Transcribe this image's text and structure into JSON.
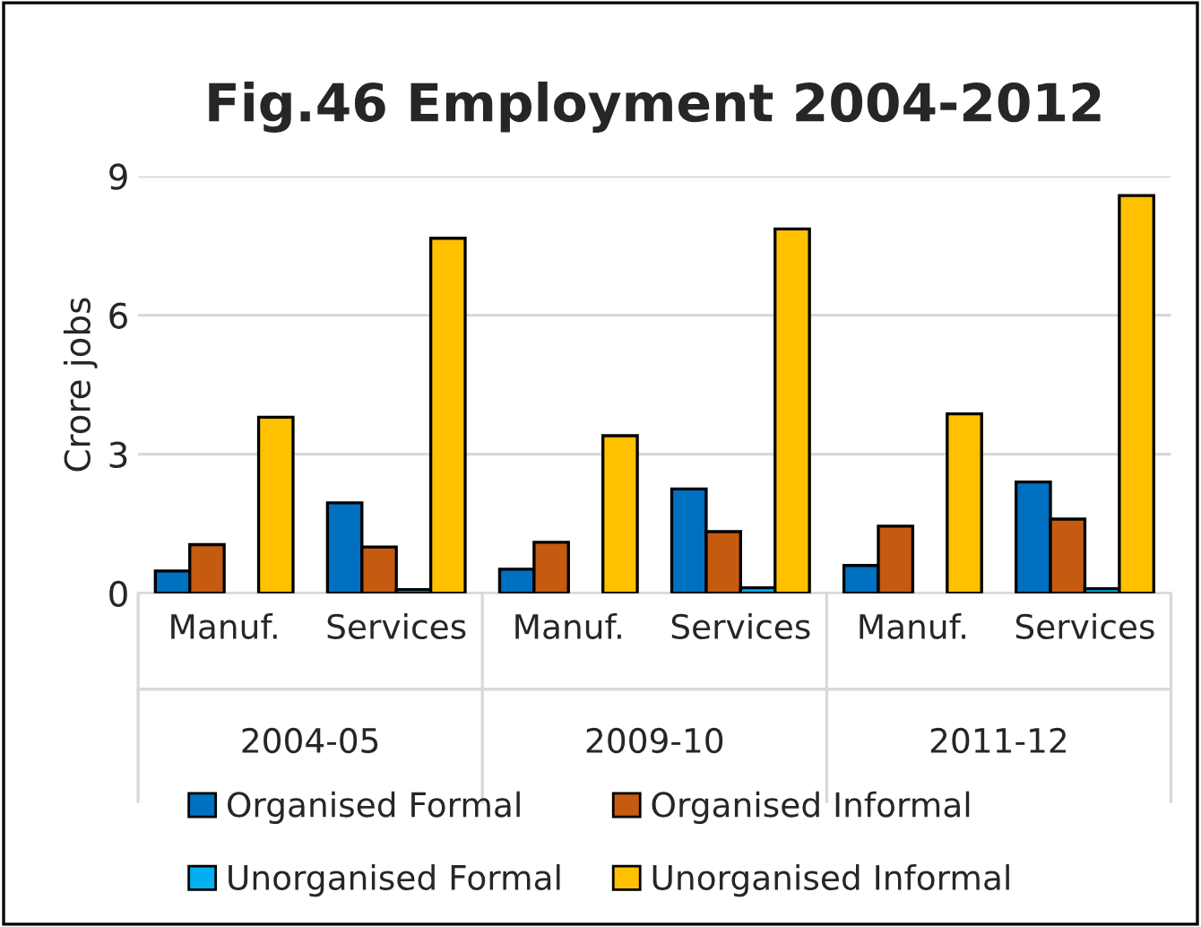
{
  "chart_data": {
    "type": "bar",
    "title": "Fig.46 Employment 2004-2012",
    "ylabel": "Crore jobs",
    "categories": [
      "Manuf.",
      "Services",
      "Manuf.",
      "Services",
      "Manuf.",
      "Services"
    ],
    "series": [
      {
        "name": "Organised Formal",
        "color": "#0070c0",
        "values": [
          0.48,
          1.95,
          0.52,
          2.25,
          0.6,
          2.4
        ]
      },
      {
        "name": "Organised Informal",
        "color": "#c55a11",
        "values": [
          1.05,
          1.0,
          1.1,
          1.33,
          1.45,
          1.6
        ]
      },
      {
        "name": "Unorganised Formal",
        "color": "#00b0f0",
        "values": [
          null,
          0.08,
          null,
          0.12,
          null,
          0.1
        ]
      },
      {
        "name": "Unorganised Informal",
        "color": "#ffc000",
        "values": [
          3.8,
          7.66,
          3.4,
          7.86,
          3.87,
          8.58
        ]
      }
    ],
    "annotations": [
      "2004-05",
      "2009-10",
      "2011-12"
    ],
    "ylim": [
      0,
      9
    ],
    "yticks": [
      0,
      3,
      6,
      9
    ],
    "grid": "y",
    "legend": "bottom"
  }
}
